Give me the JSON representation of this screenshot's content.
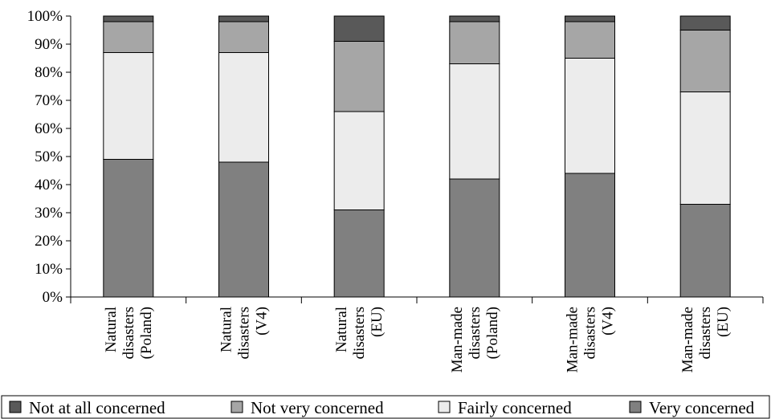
{
  "chart_data": {
    "type": "bar",
    "stacked": true,
    "percent": true,
    "categories": [
      [
        "Natural",
        "disasters",
        "(Poland)"
      ],
      [
        "Natural",
        "disasters",
        "(V4)"
      ],
      [
        "Natural",
        "disasters",
        "(EU)"
      ],
      [
        "Man-made",
        "disasters",
        "(Poland)"
      ],
      [
        "Man-made",
        "disasters",
        "(V4)"
      ],
      [
        "Man-made",
        "disasters",
        "(EU)"
      ]
    ],
    "series": [
      {
        "name": "Very concerned",
        "color": "#808080",
        "values": [
          49,
          48,
          31,
          42,
          44,
          33
        ]
      },
      {
        "name": "Fairly concerned",
        "color": "#ececec",
        "values": [
          38,
          39,
          35,
          41,
          41,
          40
        ]
      },
      {
        "name": "Not very concerned",
        "color": "#a6a6a6",
        "values": [
          11,
          11,
          25,
          15,
          13,
          22
        ]
      },
      {
        "name": "Not at all concerned",
        "color": "#595959",
        "values": [
          2,
          2,
          9,
          2,
          2,
          5
        ]
      }
    ],
    "yticks": [
      "0%",
      "10%",
      "20%",
      "30%",
      "40%",
      "50%",
      "60%",
      "70%",
      "80%",
      "90%",
      "100%"
    ],
    "ylim": [
      0,
      100
    ],
    "title": "",
    "xlabel": "",
    "ylabel": "",
    "grid": false,
    "legend": {
      "position": "bottom",
      "order": [
        "Not at all concerned",
        "Not very concerned",
        "Fairly concerned",
        "Very concerned"
      ]
    }
  }
}
